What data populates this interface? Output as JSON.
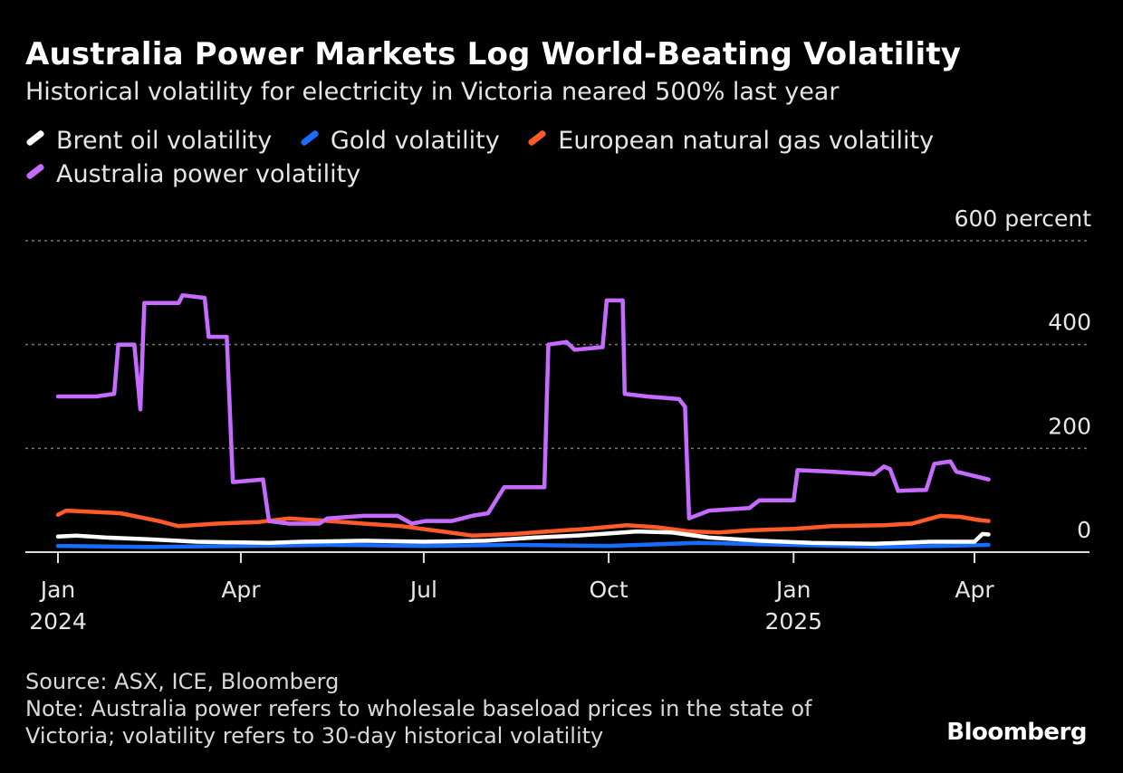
{
  "title": "Australia Power Markets Log World-Beating Volatility",
  "subtitle": "Historical volatility for electricity in Victoria neared 500% last year",
  "source": "Source: ASX, ICE, Bloomberg",
  "note": "Note: Australia power refers to wholesale baseload prices in the state of Victoria; volatility refers to 30-day historical volatility",
  "brand": "Bloomberg",
  "chart_data": {
    "type": "line",
    "title": "Australia Power Markets Log World-Beating Volatility",
    "subtitle": "Historical volatility for electricity in Victoria neared 500% last year",
    "ylabel": "",
    "y_unit": "percent",
    "ylim": [
      0,
      600
    ],
    "y_ticks": [
      {
        "value": 600,
        "label": "600 percent"
      },
      {
        "value": 400,
        "label": "400"
      },
      {
        "value": 200,
        "label": "200"
      },
      {
        "value": 0,
        "label": "0"
      }
    ],
    "xlim": [
      "2024-01-01",
      "2025-05-10"
    ],
    "x_ticks": [
      {
        "date": "2024-01-01",
        "label": "Jan",
        "sub": "2024"
      },
      {
        "date": "2024-04-01",
        "label": "Apr",
        "sub": ""
      },
      {
        "date": "2024-07-01",
        "label": "Jul",
        "sub": ""
      },
      {
        "date": "2024-10-01",
        "label": "Oct",
        "sub": ""
      },
      {
        "date": "2025-01-01",
        "label": "Jan",
        "sub": "2025"
      },
      {
        "date": "2025-04-01",
        "label": "Apr",
        "sub": ""
      }
    ],
    "grid": true,
    "legend_position": "top",
    "series": [
      {
        "name": "Brent oil volatility",
        "color": "#ffffff",
        "points": [
          [
            "2024-01-01",
            30
          ],
          [
            "2024-01-10",
            32
          ],
          [
            "2024-01-25",
            28
          ],
          [
            "2024-02-15",
            25
          ],
          [
            "2024-03-10",
            20
          ],
          [
            "2024-04-15",
            18
          ],
          [
            "2024-05-01",
            20
          ],
          [
            "2024-06-01",
            22
          ],
          [
            "2024-07-01",
            20
          ],
          [
            "2024-08-01",
            22
          ],
          [
            "2024-08-25",
            28
          ],
          [
            "2024-09-15",
            32
          ],
          [
            "2024-10-01",
            36
          ],
          [
            "2024-10-15",
            40
          ],
          [
            "2024-11-01",
            38
          ],
          [
            "2024-11-20",
            28
          ],
          [
            "2024-12-15",
            22
          ],
          [
            "2025-01-10",
            18
          ],
          [
            "2025-02-10",
            16
          ],
          [
            "2025-03-10",
            20
          ],
          [
            "2025-04-01",
            20
          ],
          [
            "2025-04-05",
            35
          ],
          [
            "2025-04-08",
            34
          ]
        ]
      },
      {
        "name": "Gold volatility",
        "color": "#1a6cff",
        "points": [
          [
            "2024-01-01",
            12
          ],
          [
            "2024-02-15",
            10
          ],
          [
            "2024-04-01",
            12
          ],
          [
            "2024-05-15",
            14
          ],
          [
            "2024-07-01",
            12
          ],
          [
            "2024-08-15",
            14
          ],
          [
            "2024-10-01",
            12
          ],
          [
            "2024-11-15",
            18
          ],
          [
            "2025-01-01",
            14
          ],
          [
            "2025-02-15",
            10
          ],
          [
            "2025-03-15",
            12
          ],
          [
            "2025-04-08",
            14
          ]
        ]
      },
      {
        "name": "European natural gas volatility",
        "color": "#ff5a2a",
        "points": [
          [
            "2024-01-01",
            72
          ],
          [
            "2024-01-05",
            80
          ],
          [
            "2024-02-01",
            75
          ],
          [
            "2024-02-20",
            60
          ],
          [
            "2024-03-01",
            50
          ],
          [
            "2024-03-20",
            55
          ],
          [
            "2024-04-10",
            58
          ],
          [
            "2024-04-25",
            65
          ],
          [
            "2024-05-15",
            60
          ],
          [
            "2024-06-01",
            55
          ],
          [
            "2024-06-20",
            50
          ],
          [
            "2024-07-10",
            40
          ],
          [
            "2024-07-25",
            32
          ],
          [
            "2024-08-15",
            35
          ],
          [
            "2024-09-01",
            40
          ],
          [
            "2024-09-20",
            45
          ],
          [
            "2024-10-10",
            52
          ],
          [
            "2024-10-25",
            48
          ],
          [
            "2024-11-10",
            40
          ],
          [
            "2024-11-25",
            38
          ],
          [
            "2024-12-10",
            42
          ],
          [
            "2025-01-01",
            45
          ],
          [
            "2025-01-20",
            50
          ],
          [
            "2025-02-15",
            52
          ],
          [
            "2025-03-01",
            55
          ],
          [
            "2025-03-15",
            70
          ],
          [
            "2025-03-25",
            68
          ],
          [
            "2025-04-03",
            62
          ],
          [
            "2025-04-08",
            60
          ]
        ]
      },
      {
        "name": "Australia power volatility",
        "color": "#c56bff",
        "points": [
          [
            "2024-01-01",
            300
          ],
          [
            "2024-01-20",
            300
          ],
          [
            "2024-01-29",
            305
          ],
          [
            "2024-01-31",
            400
          ],
          [
            "2024-02-08",
            400
          ],
          [
            "2024-02-11",
            275
          ],
          [
            "2024-02-13",
            480
          ],
          [
            "2024-03-01",
            480
          ],
          [
            "2024-03-03",
            495
          ],
          [
            "2024-03-14",
            490
          ],
          [
            "2024-03-16",
            415
          ],
          [
            "2024-03-25",
            415
          ],
          [
            "2024-03-28",
            135
          ],
          [
            "2024-04-12",
            140
          ],
          [
            "2024-04-15",
            60
          ],
          [
            "2024-04-25",
            55
          ],
          [
            "2024-05-10",
            55
          ],
          [
            "2024-05-14",
            65
          ],
          [
            "2024-06-01",
            70
          ],
          [
            "2024-06-18",
            70
          ],
          [
            "2024-06-25",
            55
          ],
          [
            "2024-07-02",
            60
          ],
          [
            "2024-07-15",
            60
          ],
          [
            "2024-07-25",
            70
          ],
          [
            "2024-08-02",
            75
          ],
          [
            "2024-08-06",
            100
          ],
          [
            "2024-08-10",
            125
          ],
          [
            "2024-08-30",
            125
          ],
          [
            "2024-09-01",
            400
          ],
          [
            "2024-09-10",
            405
          ],
          [
            "2024-09-14",
            390
          ],
          [
            "2024-09-28",
            395
          ],
          [
            "2024-09-30",
            485
          ],
          [
            "2024-10-08",
            485
          ],
          [
            "2024-10-09",
            305
          ],
          [
            "2024-10-20",
            300
          ],
          [
            "2024-11-05",
            295
          ],
          [
            "2024-11-08",
            280
          ],
          [
            "2024-11-10",
            65
          ],
          [
            "2024-11-20",
            80
          ],
          [
            "2024-12-10",
            85
          ],
          [
            "2024-12-15",
            100
          ],
          [
            "2025-01-01",
            100
          ],
          [
            "2025-01-03",
            158
          ],
          [
            "2025-01-20",
            155
          ],
          [
            "2025-02-10",
            150
          ],
          [
            "2025-02-15",
            165
          ],
          [
            "2025-02-18",
            160
          ],
          [
            "2025-02-22",
            118
          ],
          [
            "2025-03-08",
            120
          ],
          [
            "2025-03-12",
            170
          ],
          [
            "2025-03-20",
            175
          ],
          [
            "2025-03-23",
            155
          ],
          [
            "2025-04-08",
            140
          ]
        ]
      }
    ]
  }
}
